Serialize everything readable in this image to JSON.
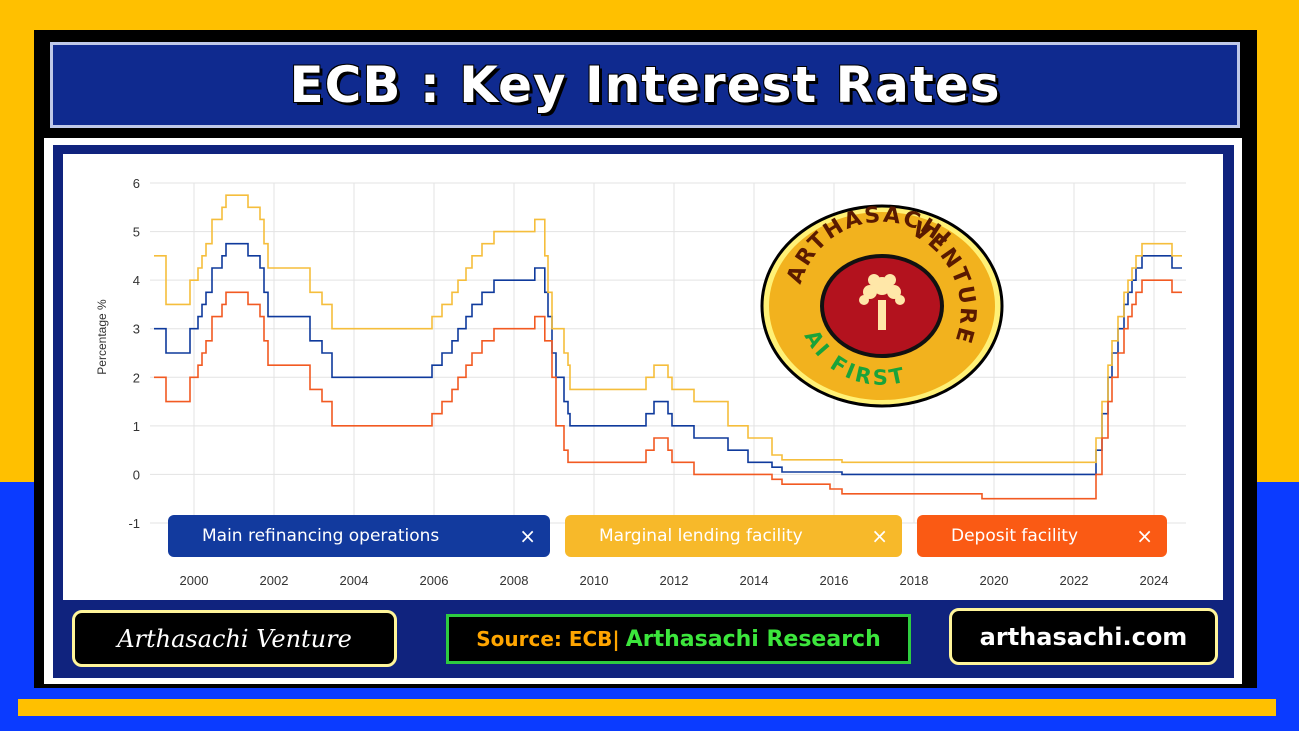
{
  "title": "ECB : Key Interest Rates",
  "colors": {
    "main": "#0F3A9C",
    "marginal": "#F5BE3C",
    "deposit": "#F25A22",
    "banner": "#0F2A8F"
  },
  "legend": [
    {
      "label": "Main refinancing operations",
      "color": "#123A9E",
      "close": "×"
    },
    {
      "label": "Marginal lending facility",
      "color": "#F7B92A",
      "close": "×"
    },
    {
      "label": "Deposit facility",
      "color": "#FA5A14",
      "close": "×"
    }
  ],
  "logo": {
    "top_text": "ARTHASACHI",
    "right_text": "VENTURE",
    "bottom_text": "AI FIRST"
  },
  "footer": {
    "brand": "Arthasachi Venture",
    "source_prefix": "Source: ECB|",
    "source_suffix": "Arthasachi Research",
    "website": "arthasachi.com"
  },
  "chart_data": {
    "type": "line",
    "ylabel": "Percentage %",
    "xlabel": "",
    "ylim": [
      -1,
      6
    ],
    "xlim": [
      1998.9,
      2024.8
    ],
    "yticks": [
      -1,
      0,
      1,
      2,
      3,
      4,
      5,
      6
    ],
    "xticks": [
      2000,
      2002,
      2004,
      2006,
      2008,
      2010,
      2012,
      2014,
      2016,
      2018,
      2020,
      2022,
      2024
    ],
    "grid": true,
    "series": [
      {
        "name": "Main refinancing operations",
        "color": "#0F3A9C",
        "points": [
          [
            1999.0,
            3.0
          ],
          [
            1999.3,
            2.5
          ],
          [
            1999.9,
            3.0
          ],
          [
            2000.1,
            3.25
          ],
          [
            2000.2,
            3.5
          ],
          [
            2000.3,
            3.75
          ],
          [
            2000.45,
            4.25
          ],
          [
            2000.5,
            4.25
          ],
          [
            2000.7,
            4.5
          ],
          [
            2000.8,
            4.75
          ],
          [
            2001.35,
            4.5
          ],
          [
            2001.65,
            4.25
          ],
          [
            2001.75,
            3.75
          ],
          [
            2001.85,
            3.25
          ],
          [
            2002.9,
            2.75
          ],
          [
            2003.2,
            2.5
          ],
          [
            2003.45,
            2.0
          ],
          [
            2005.95,
            2.25
          ],
          [
            2006.2,
            2.5
          ],
          [
            2006.45,
            2.75
          ],
          [
            2006.6,
            3.0
          ],
          [
            2006.8,
            3.25
          ],
          [
            2006.95,
            3.5
          ],
          [
            2007.2,
            3.75
          ],
          [
            2007.5,
            4.0
          ],
          [
            2008.52,
            4.25
          ],
          [
            2008.77,
            3.75
          ],
          [
            2008.85,
            3.25
          ],
          [
            2008.95,
            2.5
          ],
          [
            2009.05,
            2.0
          ],
          [
            2009.25,
            1.5
          ],
          [
            2009.35,
            1.25
          ],
          [
            2009.4,
            1.0
          ],
          [
            2011.3,
            1.25
          ],
          [
            2011.5,
            1.5
          ],
          [
            2011.85,
            1.25
          ],
          [
            2011.95,
            1.0
          ],
          [
            2012.5,
            0.75
          ],
          [
            2013.35,
            0.5
          ],
          [
            2013.85,
            0.25
          ],
          [
            2014.45,
            0.15
          ],
          [
            2014.7,
            0.05
          ],
          [
            2016.2,
            0.0
          ],
          [
            2022.55,
            0.5
          ],
          [
            2022.7,
            1.25
          ],
          [
            2022.85,
            2.0
          ],
          [
            2022.95,
            2.5
          ],
          [
            2023.1,
            3.0
          ],
          [
            2023.25,
            3.5
          ],
          [
            2023.35,
            3.75
          ],
          [
            2023.45,
            4.0
          ],
          [
            2023.55,
            4.25
          ],
          [
            2023.7,
            4.5
          ],
          [
            2024.45,
            4.25
          ],
          [
            2024.7,
            4.25
          ]
        ]
      },
      {
        "name": "Marginal lending facility",
        "color": "#F5BE3C",
        "points": [
          [
            1999.0,
            4.5
          ],
          [
            1999.3,
            3.5
          ],
          [
            1999.9,
            4.0
          ],
          [
            2000.1,
            4.25
          ],
          [
            2000.2,
            4.5
          ],
          [
            2000.3,
            4.75
          ],
          [
            2000.45,
            5.25
          ],
          [
            2000.5,
            5.25
          ],
          [
            2000.7,
            5.5
          ],
          [
            2000.8,
            5.75
          ],
          [
            2001.35,
            5.5
          ],
          [
            2001.65,
            5.25
          ],
          [
            2001.75,
            4.75
          ],
          [
            2001.85,
            4.25
          ],
          [
            2002.9,
            3.75
          ],
          [
            2003.2,
            3.5
          ],
          [
            2003.45,
            3.0
          ],
          [
            2005.95,
            3.25
          ],
          [
            2006.2,
            3.5
          ],
          [
            2006.45,
            3.75
          ],
          [
            2006.6,
            4.0
          ],
          [
            2006.8,
            4.25
          ],
          [
            2006.95,
            4.5
          ],
          [
            2007.2,
            4.75
          ],
          [
            2007.5,
            5.0
          ],
          [
            2008.52,
            5.25
          ],
          [
            2008.77,
            4.5
          ],
          [
            2008.85,
            3.75
          ],
          [
            2008.95,
            3.0
          ],
          [
            2009.05,
            3.0
          ],
          [
            2009.25,
            2.5
          ],
          [
            2009.35,
            2.25
          ],
          [
            2009.4,
            1.75
          ],
          [
            2011.3,
            2.0
          ],
          [
            2011.5,
            2.25
          ],
          [
            2011.85,
            2.0
          ],
          [
            2011.95,
            1.75
          ],
          [
            2012.5,
            1.5
          ],
          [
            2013.35,
            1.0
          ],
          [
            2013.85,
            0.75
          ],
          [
            2014.45,
            0.4
          ],
          [
            2014.7,
            0.3
          ],
          [
            2016.2,
            0.25
          ],
          [
            2022.55,
            0.75
          ],
          [
            2022.7,
            1.5
          ],
          [
            2022.85,
            2.25
          ],
          [
            2022.95,
            2.75
          ],
          [
            2023.1,
            3.25
          ],
          [
            2023.25,
            3.75
          ],
          [
            2023.35,
            4.0
          ],
          [
            2023.45,
            4.25
          ],
          [
            2023.55,
            4.5
          ],
          [
            2023.7,
            4.75
          ],
          [
            2024.45,
            4.5
          ],
          [
            2024.7,
            4.5
          ]
        ]
      },
      {
        "name": "Deposit facility",
        "color": "#F25A22",
        "points": [
          [
            1999.0,
            2.0
          ],
          [
            1999.3,
            1.5
          ],
          [
            1999.9,
            2.0
          ],
          [
            2000.1,
            2.25
          ],
          [
            2000.2,
            2.5
          ],
          [
            2000.3,
            2.75
          ],
          [
            2000.45,
            3.25
          ],
          [
            2000.5,
            3.25
          ],
          [
            2000.7,
            3.5
          ],
          [
            2000.8,
            3.75
          ],
          [
            2001.35,
            3.5
          ],
          [
            2001.65,
            3.25
          ],
          [
            2001.75,
            2.75
          ],
          [
            2001.85,
            2.25
          ],
          [
            2002.9,
            1.75
          ],
          [
            2003.2,
            1.5
          ],
          [
            2003.45,
            1.0
          ],
          [
            2005.95,
            1.25
          ],
          [
            2006.2,
            1.5
          ],
          [
            2006.45,
            1.75
          ],
          [
            2006.6,
            2.0
          ],
          [
            2006.8,
            2.25
          ],
          [
            2006.95,
            2.5
          ],
          [
            2007.2,
            2.75
          ],
          [
            2007.5,
            3.0
          ],
          [
            2008.52,
            3.25
          ],
          [
            2008.77,
            2.75
          ],
          [
            2008.85,
            2.75
          ],
          [
            2008.95,
            2.0
          ],
          [
            2009.05,
            1.0
          ],
          [
            2009.25,
            0.5
          ],
          [
            2009.35,
            0.25
          ],
          [
            2009.4,
            0.25
          ],
          [
            2011.3,
            0.5
          ],
          [
            2011.5,
            0.75
          ],
          [
            2011.85,
            0.5
          ],
          [
            2011.95,
            0.25
          ],
          [
            2012.5,
            0.0
          ],
          [
            2014.45,
            -0.1
          ],
          [
            2014.7,
            -0.2
          ],
          [
            2015.9,
            -0.3
          ],
          [
            2016.2,
            -0.4
          ],
          [
            2019.7,
            -0.5
          ],
          [
            2022.55,
            0.0
          ],
          [
            2022.7,
            0.75
          ],
          [
            2022.85,
            1.5
          ],
          [
            2022.95,
            2.0
          ],
          [
            2023.1,
            2.5
          ],
          [
            2023.25,
            3.0
          ],
          [
            2023.35,
            3.25
          ],
          [
            2023.45,
            3.5
          ],
          [
            2023.55,
            3.75
          ],
          [
            2023.7,
            4.0
          ],
          [
            2024.45,
            3.75
          ],
          [
            2024.7,
            3.75
          ]
        ]
      }
    ]
  }
}
